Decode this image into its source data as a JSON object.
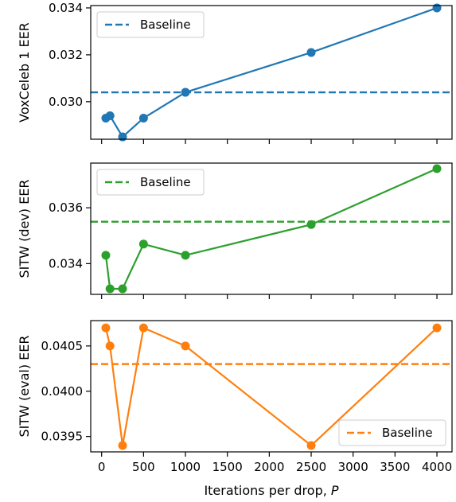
{
  "chart_data": [
    {
      "type": "line",
      "ylabel": "VoxCeleb 1 EER",
      "ylim": [
        0.0284,
        0.0341
      ],
      "yticks": [
        "0.030",
        "0.032",
        "0.034"
      ],
      "color": "#1f77b4",
      "legend": "top-left",
      "baseline": {
        "name": "Baseline",
        "value": 0.0304
      },
      "x": [
        50,
        100,
        250,
        500,
        1000,
        2500,
        4000
      ],
      "series": [
        {
          "values": [
            0.0293,
            0.0294,
            0.0285,
            0.0293,
            0.0304,
            0.0321,
            0.034
          ]
        }
      ]
    },
    {
      "type": "line",
      "ylabel": "SITW (dev) EER",
      "ylim": [
        0.0329,
        0.0376
      ],
      "yticks": [
        "0.034",
        "0.036"
      ],
      "color": "#2ca02c",
      "legend": "top-left",
      "baseline": {
        "name": "Baseline",
        "value": 0.0355
      },
      "x": [
        50,
        100,
        250,
        500,
        1000,
        2500,
        4000
      ],
      "series": [
        {
          "values": [
            0.0343,
            0.0331,
            0.0331,
            0.0347,
            0.0343,
            0.0354,
            0.0374
          ]
        }
      ]
    },
    {
      "type": "line",
      "ylabel": "SITW (eval) EER",
      "ylim": [
        0.03933,
        0.04078
      ],
      "yticks": [
        "0.0395",
        "0.0400",
        "0.0405"
      ],
      "color": "#ff7f0e",
      "legend": "bottom-right",
      "baseline": {
        "name": "Baseline",
        "value": 0.0403
      },
      "x": [
        50,
        100,
        250,
        500,
        1000,
        2500,
        4000
      ],
      "series": [
        {
          "values": [
            0.0407,
            0.0405,
            0.0394,
            0.0407,
            0.0405,
            0.0394,
            0.0407
          ]
        }
      ]
    }
  ],
  "shared_x": {
    "xlabel": "Iterations per drop, ",
    "xlabel_var": "P",
    "xlim": [
      -130,
      4180
    ],
    "xticks": [
      0,
      500,
      1000,
      1500,
      2000,
      2500,
      3000,
      3500,
      4000
    ]
  }
}
